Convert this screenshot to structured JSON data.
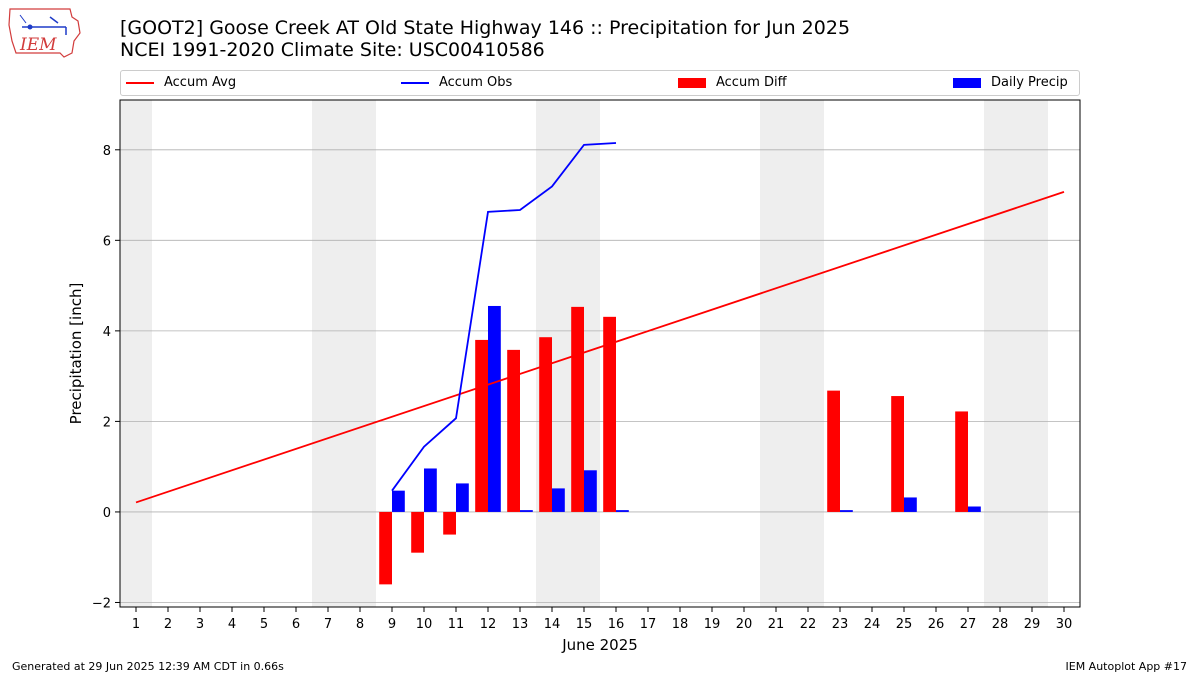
{
  "logo_text": "IEM",
  "title_line1": "[GOOT2] Goose Creek  AT Old State Highway 146 :: Precipitation for Jun 2025",
  "title_line2": "NCEI 1991-2020 Climate Site: USC00410586",
  "footer_left": "Generated at 29 Jun 2025 12:39 AM CDT in 0.66s",
  "footer_right": "IEM Autoplot App #17",
  "colors": {
    "avg": "#ff0000",
    "obs": "#0000ff",
    "diff": "#ff0000",
    "daily": "#0000ff",
    "weekend": "#eeeeee",
    "grid": "#b0b0b0"
  },
  "chart_data": {
    "type": "bar",
    "xlabel": "June 2025",
    "ylabel": "Precipitation [inch]",
    "xlim": [
      0.5,
      30.5
    ],
    "ylim": [
      -2.1,
      9.1
    ],
    "x_ticks": [
      1,
      2,
      3,
      4,
      5,
      6,
      7,
      8,
      9,
      10,
      11,
      12,
      13,
      14,
      15,
      16,
      17,
      18,
      19,
      20,
      21,
      22,
      23,
      24,
      25,
      26,
      27,
      28,
      29,
      30
    ],
    "x_tick_labels": [
      "1",
      "2",
      "3",
      "4",
      "5",
      "6",
      "7",
      "8",
      "9",
      "10",
      "11",
      "12",
      "13",
      "14",
      "15",
      "16",
      "17",
      "18",
      "19",
      "20",
      "21",
      "22",
      "23",
      "24",
      "25",
      "26",
      "27",
      "28",
      "29",
      "30"
    ],
    "y_ticks": [
      -2,
      0,
      2,
      4,
      6,
      8
    ],
    "y_tick_labels": [
      "−2",
      "0",
      "2",
      "4",
      "6",
      "8"
    ],
    "grid": "horizontal",
    "legend_placement": "top",
    "weekend_spans": [
      [
        0.5,
        1.5
      ],
      [
        6.5,
        8.5
      ],
      [
        13.5,
        15.5
      ],
      [
        20.5,
        22.5
      ],
      [
        27.5,
        29.5
      ]
    ],
    "series": [
      {
        "name": "Accum Avg",
        "kind": "line",
        "color": "#ff0000",
        "x": [
          1,
          30
        ],
        "values": [
          0.21,
          7.07
        ]
      },
      {
        "name": "Accum Obs",
        "kind": "line",
        "color": "#0000ff",
        "x": [
          9,
          10,
          11,
          12,
          13,
          14,
          15,
          16
        ],
        "values": [
          0.47,
          1.44,
          2.07,
          6.63,
          6.67,
          7.19,
          8.11,
          8.15
        ]
      },
      {
        "name": "Accum Diff",
        "kind": "bar",
        "color": "#ff0000",
        "offset": -0.2,
        "x": [
          9,
          10,
          11,
          12,
          13,
          14,
          15,
          16,
          23,
          25,
          27
        ],
        "values": [
          -1.6,
          -0.9,
          -0.5,
          3.8,
          3.58,
          3.86,
          4.53,
          4.31,
          2.68,
          2.56,
          2.22
        ]
      },
      {
        "name": "Daily Precip",
        "kind": "bar",
        "color": "#0000ff",
        "offset": 0.2,
        "x": [
          9,
          10,
          11,
          12,
          13,
          14,
          15,
          16,
          23,
          25,
          27
        ],
        "values": [
          0.47,
          0.96,
          0.63,
          4.55,
          0.04,
          0.52,
          0.92,
          0.04,
          0.04,
          0.32,
          0.12
        ]
      }
    ]
  }
}
